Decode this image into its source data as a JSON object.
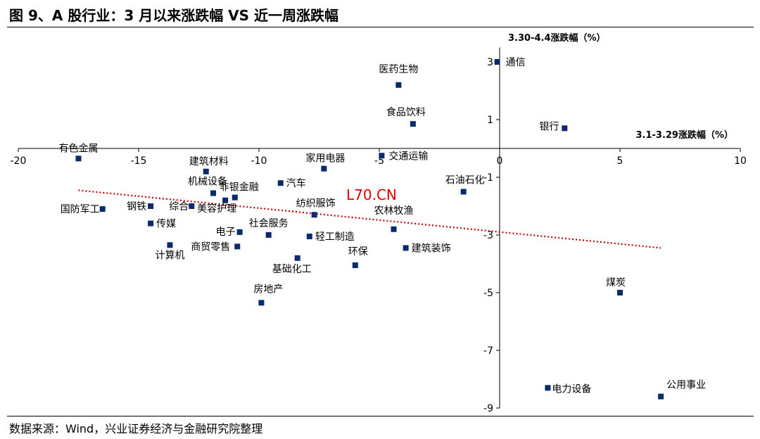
{
  "page": {
    "title": "图 9、A 股行业：3 月以来涨跌幅  VS  近一周涨跌幅",
    "source": "数据来源：Wind，兴业证券经济与金融研究院整理",
    "watermark": "L70.CN"
  },
  "chart_data": {
    "type": "scatter",
    "xlabel": "3.1-3.29涨跌幅（%）",
    "ylabel": "3.30-4.4涨跌幅（%）",
    "xlim": [
      -20,
      10
    ],
    "ylim": [
      -9,
      3.5
    ],
    "xticks": [
      -20,
      -15,
      -10,
      -5,
      0,
      5,
      10
    ],
    "yticks": [
      3,
      1,
      -1,
      -3,
      -5,
      -7,
      -9
    ],
    "grid": false,
    "marker_color": "#0b2a6b",
    "trendline": {
      "style": "dotted",
      "color": "#c00000",
      "x": [
        -17.5,
        6.7
      ],
      "y": [
        -1.45,
        -3.45
      ]
    },
    "points": [
      {
        "label": "通信",
        "x": -0.1,
        "y": 3.0
      },
      {
        "label": "医药生物",
        "x": -4.2,
        "y": 2.2
      },
      {
        "label": "食品饮料",
        "x": -3.6,
        "y": 0.85
      },
      {
        "label": "银行",
        "x": 2.7,
        "y": 0.7
      },
      {
        "label": "有色金属",
        "x": -17.5,
        "y": -0.35
      },
      {
        "label": "交通运输",
        "x": -4.9,
        "y": -0.25
      },
      {
        "label": "家用电器",
        "x": -7.3,
        "y": -0.7
      },
      {
        "label": "建筑材料",
        "x": -12.2,
        "y": -0.8
      },
      {
        "label": "机械设备",
        "x": -11.9,
        "y": -1.55
      },
      {
        "label": "非银金融",
        "x": -11.0,
        "y": -1.7
      },
      {
        "label": "汽车",
        "x": -9.1,
        "y": -1.2
      },
      {
        "label": "石油石化",
        "x": -1.5,
        "y": -1.5
      },
      {
        "label": "美容护理",
        "x": -11.4,
        "y": -1.8
      },
      {
        "label": "综合",
        "x": -12.8,
        "y": -2.0
      },
      {
        "label": "钢铁",
        "x": -14.5,
        "y": -2.0
      },
      {
        "label": "国防军工",
        "x": -16.5,
        "y": -2.1
      },
      {
        "label": "纺织服饰",
        "x": -7.7,
        "y": -2.3
      },
      {
        "label": "农林牧渔",
        "x": -4.4,
        "y": -2.8
      },
      {
        "label": "传媒",
        "x": -14.5,
        "y": -2.6
      },
      {
        "label": "电子",
        "x": -10.8,
        "y": -2.9
      },
      {
        "label": "社会服务",
        "x": -9.6,
        "y": -3.0
      },
      {
        "label": "轻工制造",
        "x": -7.9,
        "y": -3.05
      },
      {
        "label": "计算机",
        "x": -13.7,
        "y": -3.35
      },
      {
        "label": "商贸零售",
        "x": -10.9,
        "y": -3.4
      },
      {
        "label": "建筑装饰",
        "x": -3.9,
        "y": -3.45
      },
      {
        "label": "基础化工",
        "x": -8.4,
        "y": -3.8
      },
      {
        "label": "环保",
        "x": -6.0,
        "y": -4.05
      },
      {
        "label": "房地产",
        "x": -9.9,
        "y": -5.35
      },
      {
        "label": "煤炭",
        "x": 5.0,
        "y": -5.0
      },
      {
        "label": "电力设备",
        "x": 2.0,
        "y": -8.3
      },
      {
        "label": "公用事业",
        "x": 6.7,
        "y": -8.6
      }
    ]
  }
}
